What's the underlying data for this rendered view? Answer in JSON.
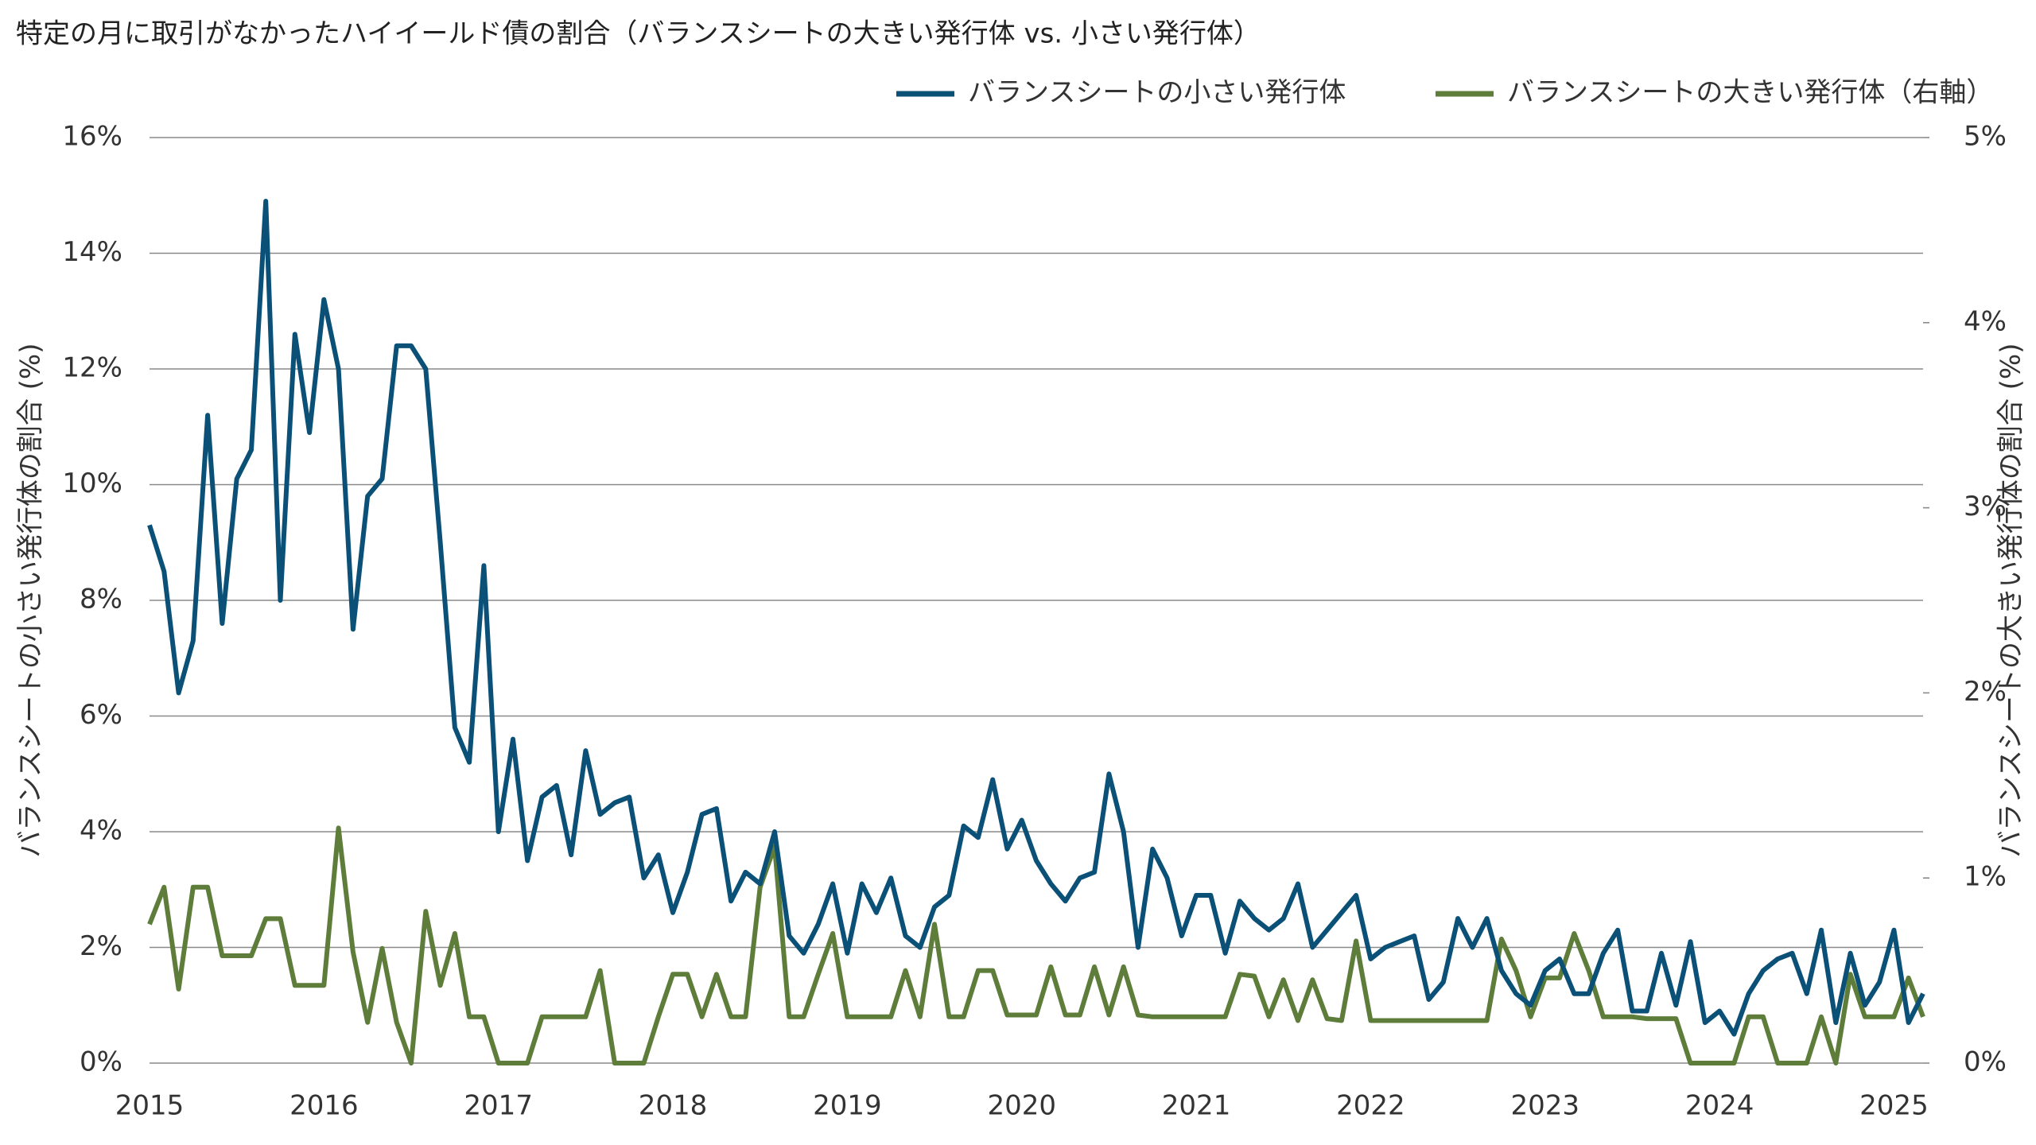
{
  "chart_data": {
    "type": "line",
    "title": "特定の月に取引がなかったハイイールド債の割合（バランスシートの大きい発行体 vs. 小さい発行体）",
    "y_label": "バランスシートの小さい発行体の割合 (%)",
    "y2_label": "バランスシートの大きい発行体の割合 (%)",
    "categories": [
      "2015",
      null,
      null,
      null,
      null,
      null,
      null,
      null,
      null,
      null,
      null,
      null,
      "2016",
      null,
      null,
      null,
      null,
      null,
      null,
      null,
      null,
      null,
      null,
      null,
      "2017",
      null,
      null,
      null,
      null,
      null,
      null,
      null,
      null,
      null,
      null,
      null,
      "2018",
      null,
      null,
      null,
      null,
      null,
      null,
      null,
      null,
      null,
      null,
      null,
      "2019",
      null,
      null,
      null,
      null,
      null,
      null,
      null,
      null,
      null,
      null,
      null,
      "2020",
      null,
      null,
      null,
      null,
      null,
      null,
      null,
      null,
      null,
      null,
      null,
      "2021",
      null,
      null,
      null,
      null,
      null,
      null,
      null,
      null,
      null,
      null,
      null,
      "2022",
      null,
      null,
      null,
      null,
      null,
      null,
      null,
      null,
      null,
      null,
      null,
      "2023",
      null,
      null,
      null,
      null,
      null,
      null,
      null,
      null,
      null,
      null,
      null,
      "2024",
      null,
      null,
      null,
      null,
      null,
      null,
      null,
      null,
      null,
      null,
      null,
      "2025",
      null,
      null
    ],
    "series": [
      {
        "name": "バランスシートの小さい発行体",
        "color": "#0b5077",
        "axis": "y",
        "values": [
          9.3,
          8.5,
          6.4,
          7.3,
          11.2,
          7.6,
          10.1,
          10.6,
          14.9,
          8.0,
          12.6,
          10.9,
          13.2,
          12.0,
          7.5,
          9.8,
          10.1,
          12.4,
          12.4,
          12.0,
          9.0,
          5.8,
          5.2,
          8.6,
          4.0,
          5.6,
          3.5,
          4.6,
          4.8,
          3.6,
          5.4,
          4.3,
          4.5,
          4.6,
          3.2,
          3.6,
          2.6,
          3.3,
          4.3,
          4.4,
          2.8,
          3.3,
          3.1,
          4.0,
          2.2,
          1.9,
          2.4,
          3.1,
          1.9,
          3.1,
          2.6,
          3.2,
          2.2,
          2.0,
          2.7,
          2.9,
          4.1,
          3.9,
          4.9,
          3.7,
          4.2,
          3.5,
          3.1,
          2.8,
          3.2,
          3.3,
          5.0,
          4.0,
          2.0,
          3.7,
          3.2,
          2.2,
          2.9,
          2.9,
          1.9,
          2.8,
          2.5,
          2.3,
          2.5,
          3.1,
          2.0,
          2.3,
          2.6,
          2.9,
          1.8,
          2.0,
          2.1,
          2.2,
          1.1,
          1.4,
          2.5,
          2.0,
          2.5,
          1.6,
          1.2,
          1.0,
          1.6,
          1.8,
          1.2,
          1.2,
          1.9,
          2.3,
          0.9,
          0.9,
          1.9,
          1.0,
          2.1,
          0.7,
          0.9,
          0.5,
          1.2,
          1.6,
          1.8,
          1.9,
          1.2,
          2.3,
          0.7,
          1.9,
          1.0,
          1.4,
          2.3,
          0.7,
          1.2
        ]
      },
      {
        "name": "バランスシートの大きい発行体（右軸）",
        "color": "#5e7d3a",
        "axis": "y2",
        "values": [
          0.75,
          0.95,
          0.4,
          0.95,
          0.95,
          0.58,
          0.58,
          0.58,
          0.78,
          0.78,
          0.42,
          0.42,
          0.42,
          1.27,
          0.6,
          0.22,
          0.62,
          0.22,
          0,
          0.82,
          0.42,
          0.7,
          0.25,
          0.25,
          0,
          0,
          0,
          0.25,
          0.25,
          0.25,
          0.25,
          0.5,
          0,
          0,
          0,
          0.25,
          0.48,
          0.48,
          0.25,
          0.48,
          0.25,
          0.25,
          0.95,
          1.17,
          0.25,
          0.25,
          0.48,
          0.7,
          0.25,
          0.25,
          0.25,
          0.25,
          0.5,
          0.25,
          0.75,
          0.25,
          0.25,
          0.5,
          0.5,
          0.26,
          0.26,
          0.26,
          0.52,
          0.26,
          0.26,
          0.52,
          0.26,
          0.52,
          0.26,
          0.25,
          0.25,
          0.25,
          0.25,
          0.25,
          0.25,
          0.48,
          0.47,
          0.25,
          0.45,
          0.23,
          0.45,
          0.24,
          0.23,
          0.66,
          0.23,
          0.23,
          0.23,
          0.23,
          0.23,
          0.23,
          0.23,
          0.23,
          0.23,
          0.67,
          0.5,
          0.25,
          0.46,
          0.46,
          0.7,
          0.5,
          0.25,
          0.25,
          0.25,
          0.24,
          0.24,
          0.24,
          0,
          0,
          0,
          0,
          0.25,
          0.25,
          0,
          0,
          0,
          0.25,
          0,
          0.48,
          0.25,
          0.25,
          0.25,
          0.46,
          0.25
        ]
      }
    ],
    "ylim": [
      0,
      16
    ],
    "yticks": [
      {
        "value": 0,
        "label": "0%"
      },
      {
        "value": 2,
        "label": "2%"
      },
      {
        "value": 4,
        "label": "4%"
      },
      {
        "value": 6,
        "label": "6%"
      },
      {
        "value": 8,
        "label": "8%"
      },
      {
        "value": 10,
        "label": "10%"
      },
      {
        "value": 12,
        "label": "12%"
      },
      {
        "value": 14,
        "label": "14%"
      },
      {
        "value": 16,
        "label": "16%"
      }
    ],
    "y2lim": [
      0,
      5
    ],
    "y2ticks": [
      {
        "value": 0,
        "label": "0%"
      },
      {
        "value": 1,
        "label": "1%"
      },
      {
        "value": 2,
        "label": "2%"
      },
      {
        "value": 3,
        "label": "3%"
      },
      {
        "value": 4,
        "label": "4%"
      },
      {
        "value": 5,
        "label": "5%"
      }
    ],
    "grid": true
  }
}
